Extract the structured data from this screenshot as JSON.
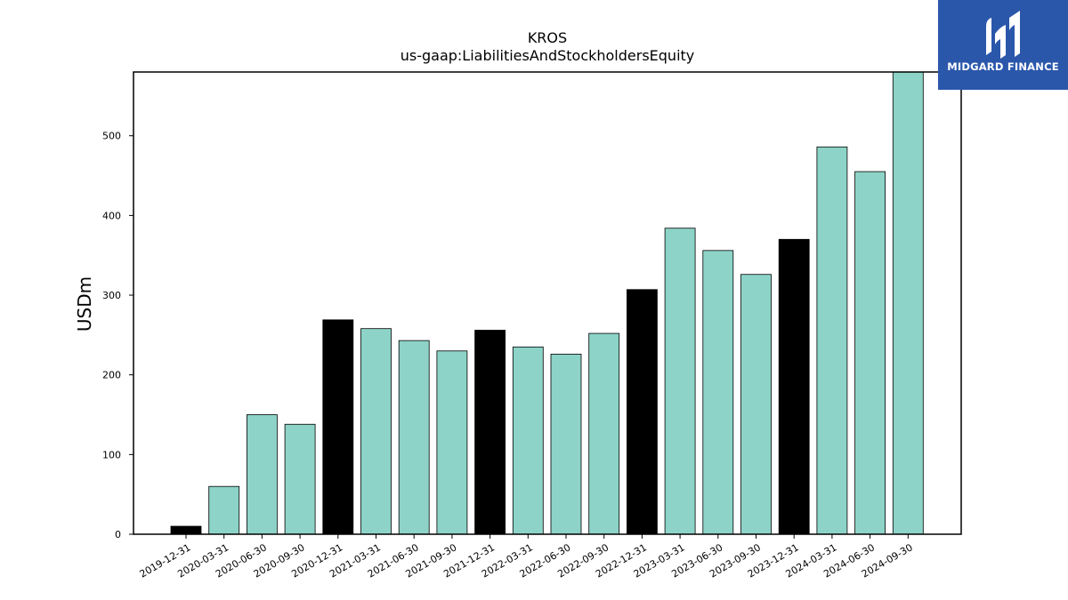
{
  "logo": {
    "text": "MIDGARD FINANCE",
    "background": "#2b57ab"
  },
  "chart_data": {
    "type": "bar",
    "title": "KROS",
    "subtitle": "us-gaap:LiabilitiesAndStockholdersEquity",
    "xlabel": "",
    "ylabel": "USDm",
    "ylim": [
      0,
      580
    ],
    "yticks": [
      0,
      100,
      200,
      300,
      400,
      500
    ],
    "grid": false,
    "colors": {
      "quarter": "#8dd3c7",
      "year_end": "#000000",
      "edge": "#000000"
    },
    "categories": [
      "2019-12-31",
      "2020-03-31",
      "2020-06-30",
      "2020-09-30",
      "2020-12-31",
      "2021-03-31",
      "2021-06-30",
      "2021-09-30",
      "2021-12-31",
      "2022-03-31",
      "2022-06-30",
      "2022-09-30",
      "2022-12-31",
      "2023-03-31",
      "2023-06-30",
      "2023-09-30",
      "2023-12-31",
      "2024-03-31",
      "2024-06-30",
      "2024-09-30"
    ],
    "values": [
      10,
      60,
      150,
      138,
      269,
      258,
      243,
      230,
      256,
      235,
      226,
      252,
      307,
      384,
      356,
      326,
      370,
      486,
      455,
      580
    ]
  }
}
